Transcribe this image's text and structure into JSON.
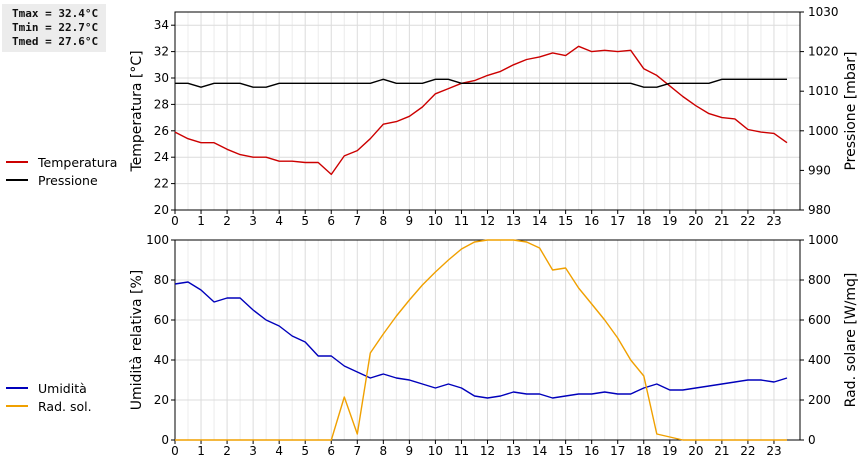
{
  "stats": {
    "lines": [
      "Tmax = 32.4°C",
      "Tmin = 22.7°C",
      "Tmed = 27.6°C"
    ]
  },
  "chart_data": [
    {
      "type": "line",
      "xlim": [
        0,
        24
      ],
      "x_ticks": [
        0,
        1,
        2,
        3,
        4,
        5,
        6,
        7,
        8,
        9,
        10,
        11,
        12,
        13,
        14,
        15,
        16,
        17,
        18,
        19,
        20,
        21,
        22,
        23
      ],
      "ylabel": "Temperatura [°C]",
      "ylim": [
        20,
        35
      ],
      "y_ticks": [
        20,
        22,
        24,
        26,
        28,
        30,
        32,
        34
      ],
      "y2label": "Pressione [mbar]",
      "y2lim": [
        980,
        1030
      ],
      "y2_ticks": [
        980,
        990,
        1000,
        1010,
        1020,
        1030
      ],
      "grid": true,
      "legend_position": "left",
      "series": [
        {
          "name": "Temperatura",
          "color": "#cc0000",
          "axis": "left",
          "x": [
            0,
            0.5,
            1,
            1.5,
            2,
            2.5,
            3,
            3.5,
            4,
            4.5,
            5,
            5.5,
            6,
            6.5,
            7,
            7.5,
            8,
            8.5,
            9,
            9.5,
            10,
            10.5,
            11,
            11.5,
            12,
            12.5,
            13,
            13.5,
            14,
            14.5,
            15,
            15.5,
            16,
            16.5,
            17,
            17.5,
            18,
            18.5,
            19,
            19.5,
            20,
            20.5,
            21,
            21.5,
            22,
            22.5,
            23,
            23.5
          ],
          "y": [
            25.9,
            25.4,
            25.1,
            25.1,
            24.6,
            24.2,
            24.0,
            24.0,
            23.7,
            23.7,
            23.6,
            23.6,
            22.7,
            24.1,
            24.5,
            25.4,
            26.5,
            26.7,
            27.1,
            27.8,
            28.8,
            29.2,
            29.6,
            29.8,
            30.2,
            30.5,
            31.0,
            31.4,
            31.6,
            31.9,
            31.7,
            32.4,
            32.0,
            32.1,
            32.0,
            32.1,
            30.7,
            30.2,
            29.4,
            28.6,
            27.9,
            27.3,
            27.0,
            26.9,
            26.1,
            25.9,
            25.8,
            25.1
          ]
        },
        {
          "name": "Pressione",
          "color": "#000000",
          "axis": "right",
          "x": [
            0,
            0.5,
            1,
            1.5,
            2,
            2.5,
            3,
            3.5,
            4,
            4.5,
            5,
            5.5,
            6,
            6.5,
            7,
            7.5,
            8,
            8.5,
            9,
            9.5,
            10,
            10.5,
            11,
            11.5,
            12,
            12.5,
            13,
            13.5,
            14,
            14.5,
            15,
            15.5,
            16,
            16.5,
            17,
            17.5,
            18,
            18.5,
            19,
            19.5,
            20,
            20.5,
            21,
            21.5,
            22,
            22.5,
            23,
            23.5
          ],
          "y": [
            1012,
            1012,
            1011,
            1012,
            1012,
            1012,
            1011,
            1011,
            1012,
            1012,
            1012,
            1012,
            1012,
            1012,
            1012,
            1012,
            1013,
            1012,
            1012,
            1012,
            1013,
            1013,
            1012,
            1012,
            1012,
            1012,
            1012,
            1012,
            1012,
            1012,
            1012,
            1012,
            1012,
            1012,
            1012,
            1012,
            1011,
            1011,
            1012,
            1012,
            1012,
            1012,
            1013,
            1013,
            1013,
            1013,
            1013,
            1013
          ]
        }
      ]
    },
    {
      "type": "line",
      "xlim": [
        0,
        24
      ],
      "x_ticks": [
        0,
        1,
        2,
        3,
        4,
        5,
        6,
        7,
        8,
        9,
        10,
        11,
        12,
        13,
        14,
        15,
        16,
        17,
        18,
        19,
        20,
        21,
        22,
        23
      ],
      "ylabel": "Umidità relativa [%]",
      "ylim": [
        0,
        100
      ],
      "y_ticks": [
        0,
        20,
        40,
        60,
        80,
        100
      ],
      "y2label": "Rad. solare [W/mq]",
      "y2lim": [
        0,
        1000
      ],
      "y2_ticks": [
        0,
        200,
        400,
        600,
        800,
        1000
      ],
      "grid": true,
      "legend_position": "left",
      "series": [
        {
          "name": "Umidità",
          "color": "#0000bb",
          "axis": "left",
          "x": [
            0,
            0.5,
            1,
            1.5,
            2,
            2.5,
            3,
            3.5,
            4,
            4.5,
            5,
            5.5,
            6,
            6.5,
            7,
            7.5,
            8,
            8.5,
            9,
            9.5,
            10,
            10.5,
            11,
            11.5,
            12,
            12.5,
            13,
            13.5,
            14,
            14.5,
            15,
            15.5,
            16,
            16.5,
            17,
            17.5,
            18,
            18.5,
            19,
            19.5,
            20,
            20.5,
            21,
            21.5,
            22,
            22.5,
            23,
            23.5
          ],
          "y": [
            78,
            79,
            75,
            69,
            71,
            71,
            65,
            60,
            57,
            52,
            49,
            42,
            42,
            37,
            34,
            31,
            33,
            31,
            30,
            28,
            26,
            28,
            26,
            22,
            21,
            22,
            24,
            23,
            23,
            21,
            22,
            23,
            23,
            24,
            23,
            23,
            26,
            28,
            25,
            25,
            26,
            27,
            28,
            29,
            30,
            30,
            29,
            31
          ]
        },
        {
          "name": "Rad. sol.",
          "color": "#f0a000",
          "axis": "right",
          "x": [
            0,
            0.5,
            1,
            1.5,
            2,
            2.5,
            3,
            3.5,
            4,
            4.5,
            5,
            5.5,
            6,
            6.5,
            7,
            7.5,
            8,
            8.5,
            9,
            9.5,
            10,
            10.5,
            11,
            11.5,
            12,
            12.5,
            13,
            13.5,
            14,
            14.5,
            15,
            15.5,
            16,
            16.5,
            17,
            17.5,
            18,
            18.5,
            19,
            19.5,
            20,
            20.5,
            21,
            21.5,
            22,
            22.5,
            23,
            23.5
          ],
          "y": [
            0,
            0,
            0,
            0,
            0,
            0,
            0,
            0,
            0,
            0,
            0,
            0,
            0,
            215,
            30,
            435,
            530,
            620,
            700,
            775,
            840,
            900,
            955,
            990,
            1000,
            1000,
            1000,
            990,
            960,
            850,
            860,
            760,
            680,
            600,
            510,
            400,
            320,
            30,
            15,
            0,
            0,
            0,
            0,
            0,
            0,
            0,
            0,
            0
          ]
        }
      ]
    }
  ]
}
